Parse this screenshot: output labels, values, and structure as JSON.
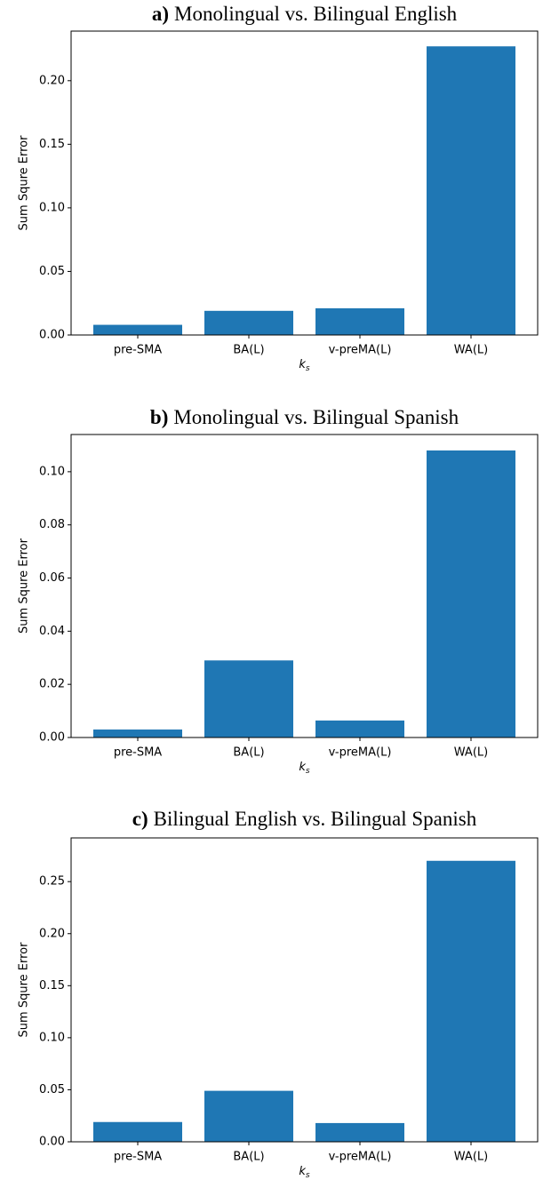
{
  "chart_data": [
    {
      "type": "bar",
      "panel": "a)",
      "title": "Monolingual vs. Bilingual English",
      "categories": [
        "pre-SMA",
        "BA(L)",
        "v-preMA(L)",
        "WA(L)"
      ],
      "values": [
        0.008,
        0.019,
        0.021,
        0.227
      ],
      "color": "#1f77b4",
      "xlabel": {
        "base": "k",
        "sub": "s"
      },
      "ylabel": "Sum Squre Error",
      "ylim": [
        0,
        0.239
      ],
      "yticks": [
        {
          "value": 0,
          "label": "0.00"
        },
        {
          "value": 0.05,
          "label": "0.05"
        },
        {
          "value": 0.1,
          "label": "0.10"
        },
        {
          "value": 0.15,
          "label": "0.15"
        },
        {
          "value": 0.2,
          "label": "0.20"
        }
      ]
    },
    {
      "type": "bar",
      "panel": "b)",
      "title": "Monolingual vs. Bilingual Spanish",
      "categories": [
        "pre-SMA",
        "BA(L)",
        "v-preMA(L)",
        "WA(L)"
      ],
      "values": [
        0.003,
        0.029,
        0.0064,
        0.108
      ],
      "color": "#1f77b4",
      "xlabel": {
        "base": "k",
        "sub": "s"
      },
      "ylabel": "Sum Squre Error",
      "ylim": [
        0,
        0.114
      ],
      "yticks": [
        {
          "value": 0,
          "label": "0.00"
        },
        {
          "value": 0.02,
          "label": "0.02"
        },
        {
          "value": 0.04,
          "label": "0.04"
        },
        {
          "value": 0.06,
          "label": "0.06"
        },
        {
          "value": 0.08,
          "label": "0.08"
        },
        {
          "value": 0.1,
          "label": "0.10"
        }
      ]
    },
    {
      "type": "bar",
      "panel": "c)",
      "title": "Bilingual English vs. Bilingual Spanish",
      "categories": [
        "pre-SMA",
        "BA(L)",
        "v-preMA(L)",
        "WA(L)"
      ],
      "values": [
        0.019,
        0.049,
        0.018,
        0.27
      ],
      "color": "#1f77b4",
      "xlabel": {
        "base": "k",
        "sub": "s"
      },
      "ylabel": "Sum Squre Error",
      "ylim": [
        0,
        0.292
      ],
      "yticks": [
        {
          "value": 0,
          "label": "0.00"
        },
        {
          "value": 0.05,
          "label": "0.05"
        },
        {
          "value": 0.1,
          "label": "0.10"
        },
        {
          "value": 0.15,
          "label": "0.15"
        },
        {
          "value": 0.2,
          "label": "0.20"
        },
        {
          "value": 0.25,
          "label": "0.25"
        }
      ]
    }
  ]
}
